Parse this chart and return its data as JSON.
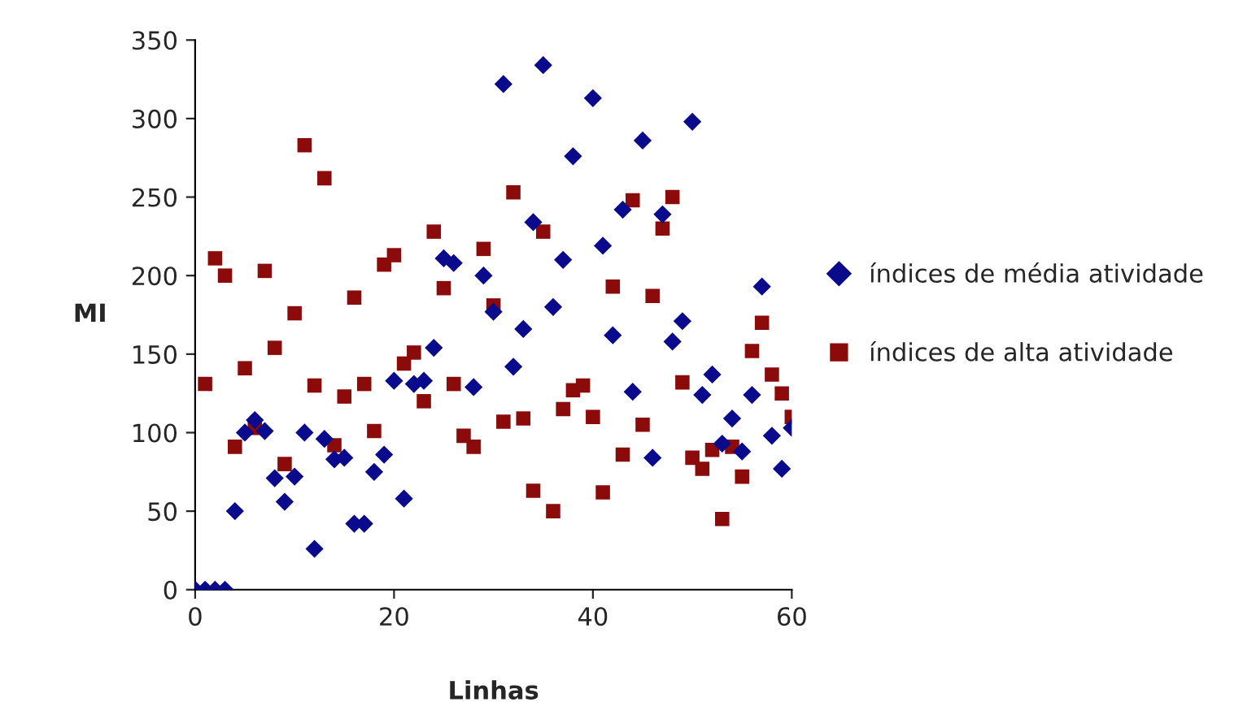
{
  "chart_data": {
    "type": "scatter",
    "xlabel": "Linhas",
    "ylabel": "MI",
    "xlim": [
      0,
      60
    ],
    "xticks": [
      0,
      20,
      40,
      60
    ],
    "ylim": [
      0,
      350
    ],
    "yticks": [
      0,
      50,
      100,
      150,
      200,
      250,
      300,
      350
    ],
    "grid": false,
    "legend": "right",
    "series": [
      {
        "name": "índices de média atividade",
        "color": "#0a0a8c",
        "marker": "diamond",
        "x": [
          0,
          1,
          2,
          3,
          4,
          5,
          6,
          7,
          8,
          9,
          10,
          11,
          12,
          13,
          14,
          15,
          16,
          17,
          18,
          19,
          20,
          21,
          22,
          23,
          24,
          25,
          26,
          28,
          29,
          30,
          31,
          32,
          33,
          34,
          35,
          36,
          37,
          38,
          40,
          41,
          42,
          43,
          44,
          45,
          46,
          47,
          48,
          49,
          50,
          51,
          52,
          53,
          54,
          55,
          56,
          57,
          58,
          59,
          60
        ],
        "values": [
          0,
          0,
          0,
          0,
          50,
          100,
          108,
          101,
          71,
          56,
          72,
          100,
          26,
          96,
          83,
          84,
          42,
          42,
          75,
          86,
          133,
          58,
          131,
          133,
          154,
          211,
          208,
          129,
          200,
          177,
          322,
          142,
          166,
          234,
          334,
          180,
          210,
          276,
          313,
          219,
          162,
          242,
          126,
          286,
          84,
          239,
          158,
          171,
          298,
          124,
          137,
          93,
          109,
          88,
          124,
          193,
          98,
          77,
          103
        ]
      },
      {
        "name": "índices de alta atividade",
        "color": "#8b0a0a",
        "marker": "square",
        "x": [
          1,
          2,
          3,
          4,
          5,
          6,
          7,
          8,
          9,
          10,
          11,
          12,
          13,
          14,
          15,
          16,
          17,
          18,
          19,
          20,
          21,
          22,
          23,
          24,
          25,
          26,
          27,
          28,
          29,
          30,
          31,
          32,
          33,
          34,
          35,
          36,
          37,
          38,
          39,
          40,
          41,
          42,
          43,
          44,
          45,
          46,
          47,
          48,
          49,
          50,
          51,
          52,
          53,
          54,
          55,
          56,
          57,
          58,
          59,
          60
        ],
        "values": [
          131,
          211,
          200,
          91,
          141,
          103,
          203,
          154,
          80,
          176,
          283,
          130,
          262,
          92,
          123,
          186,
          131,
          101,
          207,
          213,
          144,
          151,
          120,
          228,
          192,
          131,
          98,
          91,
          217,
          181,
          107,
          253,
          109,
          63,
          228,
          50,
          115,
          127,
          130,
          110,
          62,
          193,
          86,
          248,
          105,
          187,
          230,
          250,
          132,
          84,
          77,
          89,
          45,
          91,
          72,
          152,
          170,
          137,
          125,
          110
        ]
      }
    ]
  }
}
